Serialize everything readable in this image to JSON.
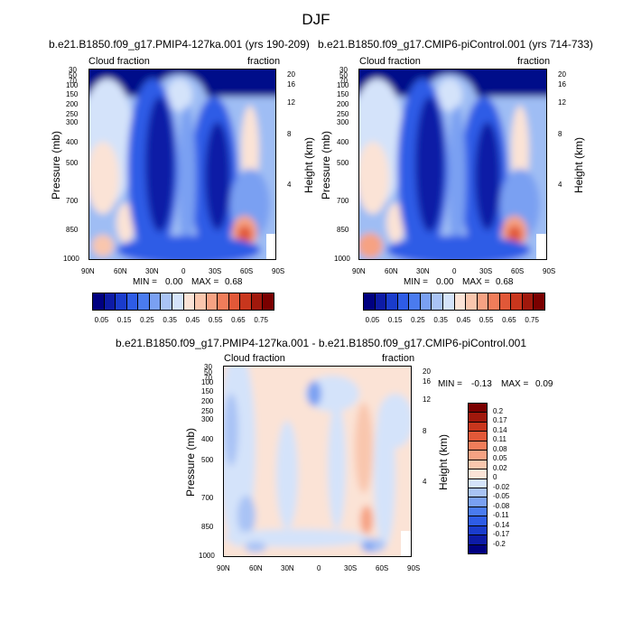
{
  "figure": {
    "title": "DJF"
  },
  "chart_data": [
    {
      "type": "heatmap",
      "title": "b.e21.B1850.f09_g17.PMIP4-127ka.001 (yrs 190-209)",
      "left_label": "Cloud fraction",
      "right_label": "fraction",
      "xlabel": "",
      "ylabel": "Pressure (mb)",
      "ylabel_right": "Height (km)",
      "x_ticks": [
        "90N",
        "60N",
        "30N",
        "0",
        "30S",
        "60S",
        "90S"
      ],
      "y_ticks": [
        "30",
        "50",
        "70",
        "100",
        "150",
        "200",
        "250",
        "300",
        "400",
        "500",
        "700",
        "850",
        "1000"
      ],
      "y_ticks_right": [
        "20",
        "16",
        "12",
        "8",
        "4"
      ],
      "stats": {
        "min_label": "MIN =",
        "min": "0.00",
        "max_label": "MAX =",
        "max": "0.68"
      },
      "colorbar": {
        "labels": [
          "0.05",
          "0.15",
          "0.25",
          "0.35",
          "0.45",
          "0.55",
          "0.65",
          "0.75"
        ],
        "colors": [
          "#000080",
          "#0d1ba6",
          "#1a3ccc",
          "#2e5ce6",
          "#4a7bef",
          "#7aa0f2",
          "#a9c3f5",
          "#d4e3fa",
          "#fbe3d6",
          "#f9c6ad",
          "#f6a283",
          "#f07d5a",
          "#e15838",
          "#c8361d",
          "#a0180c",
          "#7a0000"
        ]
      }
    },
    {
      "type": "heatmap",
      "title": "b.e21.B1850.f09_g17.CMIP6-piControl.001 (yrs 714-733)",
      "left_label": "Cloud fraction",
      "right_label": "fraction",
      "xlabel": "",
      "ylabel": "Pressure (mb)",
      "ylabel_right": "Height (km)",
      "x_ticks": [
        "90N",
        "60N",
        "30N",
        "0",
        "30S",
        "60S",
        "90S"
      ],
      "y_ticks": [
        "30",
        "50",
        "70",
        "100",
        "150",
        "200",
        "250",
        "300",
        "400",
        "500",
        "700",
        "850",
        "1000"
      ],
      "y_ticks_right": [
        "20",
        "16",
        "12",
        "8",
        "4"
      ],
      "stats": {
        "min_label": "MIN =",
        "min": "0.00",
        "max_label": "MAX =",
        "max": "0.68"
      },
      "colorbar": {
        "labels": [
          "0.05",
          "0.15",
          "0.25",
          "0.35",
          "0.45",
          "0.55",
          "0.65",
          "0.75"
        ],
        "colors": [
          "#000080",
          "#0d1ba6",
          "#1a3ccc",
          "#2e5ce6",
          "#4a7bef",
          "#7aa0f2",
          "#a9c3f5",
          "#d4e3fa",
          "#fbe3d6",
          "#f9c6ad",
          "#f6a283",
          "#f07d5a",
          "#e15838",
          "#c8361d",
          "#a0180c",
          "#7a0000"
        ]
      }
    },
    {
      "type": "heatmap",
      "title": "b.e21.B1850.f09_g17.PMIP4-127ka.001 - b.e21.B1850.f09_g17.CMIP6-piControl.001",
      "left_label": "Cloud fraction",
      "right_label": "fraction",
      "xlabel": "",
      "ylabel": "Pressure (mb)",
      "ylabel_right": "Height (km)",
      "x_ticks": [
        "90N",
        "60N",
        "30N",
        "0",
        "30S",
        "60S",
        "90S"
      ],
      "y_ticks": [
        "30",
        "50",
        "70",
        "100",
        "150",
        "200",
        "250",
        "300",
        "400",
        "500",
        "700",
        "850",
        "1000"
      ],
      "y_ticks_right": [
        "20",
        "16",
        "12",
        "8",
        "4"
      ],
      "stats": {
        "min_label": "MIN =",
        "min": "-0.13",
        "max_label": "MAX =",
        "max": "0.09"
      },
      "colorbar": {
        "labels": [
          "0.2",
          "0.17",
          "0.14",
          "0.11",
          "0.08",
          "0.05",
          "0.02",
          "0",
          "-0.02",
          "-0.05",
          "-0.08",
          "-0.11",
          "-0.14",
          "-0.17",
          "-0.2"
        ],
        "colors": [
          "#7a0000",
          "#a0180c",
          "#c8361d",
          "#e15838",
          "#f07d5a",
          "#f6a283",
          "#f9c6ad",
          "#fbe3d6",
          "#d4e3fa",
          "#a9c3f5",
          "#7aa0f2",
          "#4a7bef",
          "#2e5ce6",
          "#1a3ccc",
          "#0d1ba6",
          "#000080"
        ]
      }
    }
  ]
}
